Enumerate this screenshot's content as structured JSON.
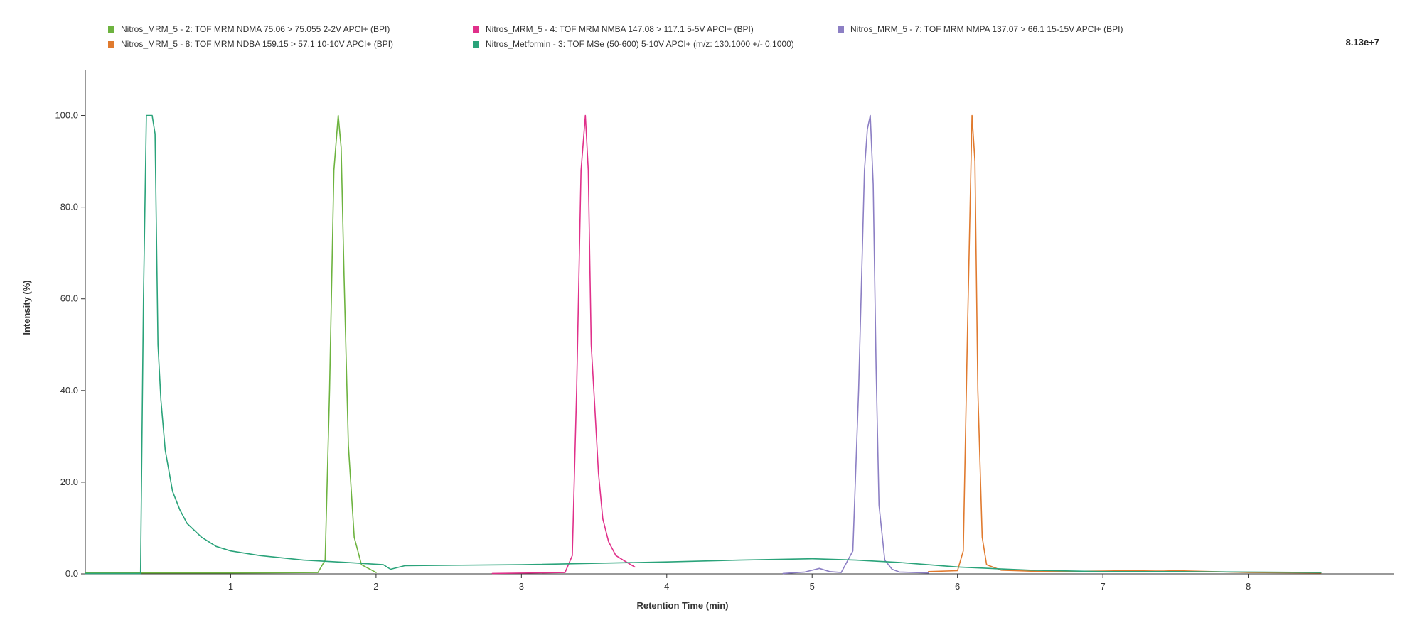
{
  "scale_label": "8.13e+7",
  "chart_data": {
    "type": "line",
    "xlabel": "Retention Time (min)",
    "ylabel": "Intensity (%)",
    "xlim": [
      0,
      9
    ],
    "ylim": [
      0,
      110
    ],
    "x_ticks": [
      1,
      2,
      3,
      4,
      5,
      6,
      7,
      8
    ],
    "y_ticks": [
      0,
      20,
      40,
      60,
      80,
      100
    ],
    "y_tick_labels": [
      "0.0",
      "20.0",
      "40.0",
      "60.0",
      "80.0",
      "100.0"
    ],
    "grid": false,
    "legend_position": "top",
    "series": [
      {
        "name": "Nitros_MRM_5 - 2: TOF MRM NDMA 75.06 > 75.055 2-2V APCI+ (BPI)",
        "color": "#6db33f",
        "x": [
          0.0,
          1.0,
          1.6,
          1.65,
          1.68,
          1.71,
          1.74,
          1.76,
          1.78,
          1.81,
          1.85,
          1.9,
          2.0
        ],
        "y": [
          0.2,
          0.2,
          0.3,
          3,
          40,
          88,
          100,
          93,
          65,
          28,
          8,
          2,
          0.3
        ]
      },
      {
        "name": "Nitros_MRM_5 - 4: TOF MRM NMBA 147.08 > 117.1 5-5V APCI+ (BPI)",
        "color": "#e0308a",
        "x": [
          2.8,
          3.3,
          3.35,
          3.38,
          3.41,
          3.44,
          3.46,
          3.48,
          3.5,
          3.53,
          3.56,
          3.6,
          3.65,
          3.7,
          3.78
        ],
        "y": [
          0.1,
          0.3,
          4,
          40,
          88,
          100,
          88,
          50,
          39,
          22,
          12,
          7,
          4,
          3,
          1.5
        ]
      },
      {
        "name": "Nitros_MRM_5 - 7: TOF MRM NMPA 137.07 > 66.1 15-15V APCI+ (BPI)",
        "color": "#8c7fc4",
        "x": [
          4.8,
          4.95,
          5.05,
          5.12,
          5.2,
          5.28,
          5.32,
          5.36,
          5.38,
          5.4,
          5.42,
          5.44,
          5.46,
          5.5,
          5.55,
          5.6,
          5.8
        ],
        "y": [
          0.1,
          0.4,
          1.2,
          0.5,
          0.3,
          5,
          40,
          88,
          97,
          100,
          85,
          45,
          15,
          3,
          1,
          0.4,
          0.2
        ]
      },
      {
        "name": "Nitros_MRM_5 - 8: TOF MRM NDBA 159.15 > 57.1 10-10V APCI+ (BPI)",
        "color": "#e07a2e",
        "x": [
          5.8,
          6.0,
          6.04,
          6.07,
          6.1,
          6.12,
          6.14,
          6.17,
          6.2,
          6.3,
          6.6,
          7.0,
          7.4,
          7.6,
          8.0,
          8.5
        ],
        "y": [
          0.5,
          0.7,
          5,
          55,
          100,
          90,
          40,
          8,
          2,
          0.8,
          0.5,
          0.6,
          0.8,
          0.6,
          0.3,
          0.2
        ]
      },
      {
        "name": "Nitros_Metformin - 3: TOF MSe (50-600) 5-10V APCI+ (m/z: 130.1000 +/- 0.1000)",
        "color": "#2aa37a",
        "x": [
          0.0,
          0.38,
          0.4,
          0.42,
          0.46,
          0.48,
          0.5,
          0.52,
          0.55,
          0.6,
          0.65,
          0.7,
          0.8,
          0.9,
          1.0,
          1.2,
          1.5,
          1.8,
          2.05,
          2.1,
          2.2,
          3.0,
          4.0,
          4.5,
          5.0,
          5.3,
          5.6,
          6.0,
          6.5,
          7.0,
          7.5,
          8.0,
          8.5
        ],
        "y": [
          0.1,
          0.1,
          60,
          100,
          100,
          96,
          50,
          38,
          27,
          18,
          14,
          11,
          8,
          6,
          5,
          4,
          3,
          2.5,
          2,
          1,
          1.8,
          2,
          2.6,
          3,
          3.3,
          3,
          2.5,
          1.5,
          0.8,
          0.5,
          0.5,
          0.4,
          0.3
        ]
      }
    ]
  }
}
